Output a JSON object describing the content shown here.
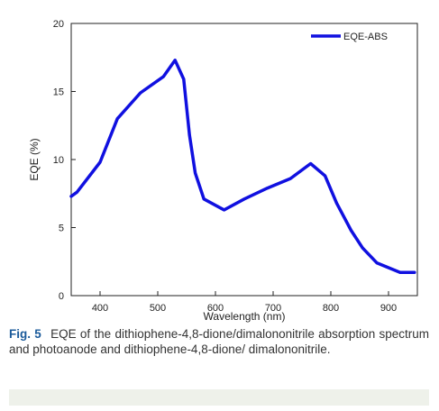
{
  "chart_data": {
    "type": "line",
    "xlabel": "Wavelength (nm)",
    "ylabel": "EQE (%)",
    "xlim": [
      350,
      950
    ],
    "ylim": [
      0,
      20
    ],
    "xticks": [
      400,
      500,
      600,
      700,
      800,
      900
    ],
    "yticks": [
      0,
      5,
      10,
      15,
      20
    ],
    "legend_position": "top-right",
    "series": [
      {
        "name": "EQE-ABS",
        "color": "#1010e0",
        "x": [
          350,
          360,
          400,
          430,
          470,
          510,
          530,
          545,
          555,
          565,
          580,
          615,
          650,
          690,
          730,
          765,
          790,
          810,
          835,
          855,
          880,
          920,
          945
        ],
        "y": [
          7.3,
          7.6,
          9.8,
          13.0,
          14.9,
          16.1,
          17.3,
          15.9,
          11.8,
          9.0,
          7.1,
          6.3,
          7.1,
          7.9,
          8.6,
          9.7,
          8.8,
          6.8,
          4.8,
          3.5,
          2.4,
          1.7,
          1.7
        ]
      }
    ]
  },
  "caption": {
    "label": "Fig. 5",
    "text": "EQE of the dithiophene-4,8-dione/dimalononitrile absorption spectrum and photoanode and dithiophene-4,8-dione/ dimalononitrile."
  }
}
